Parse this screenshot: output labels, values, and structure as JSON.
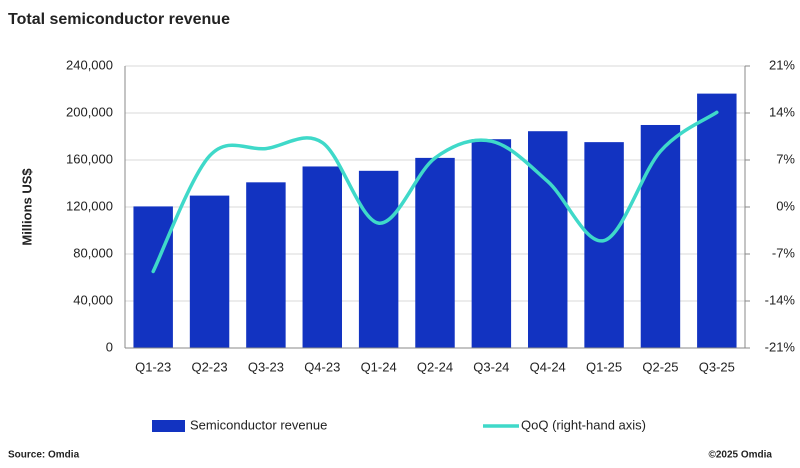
{
  "chart_data": {
    "type": "combo",
    "title": "Total semiconductor revenue",
    "y_label": "Millions US$",
    "categories": [
      "Q1-23",
      "Q2-23",
      "Q3-23",
      "Q4-23",
      "Q1-24",
      "Q2-24",
      "Q3-24",
      "Q4-24",
      "Q1-25",
      "Q2-25",
      "Q3-25"
    ],
    "series": [
      {
        "name": "Semiconductor revenue",
        "type": "bar",
        "color": "#1233c1",
        "values": [
          120500,
          129700,
          141000,
          154500,
          150800,
          161800,
          177700,
          184500,
          175200,
          189800,
          216500
        ]
      },
      {
        "name": "QoQ (right-hand axis)",
        "type": "line",
        "axis": "y2",
        "color": "#3fd9c9",
        "values": [
          -9.6,
          7.6,
          8.7,
          9.6,
          -2.4,
          7.3,
          9.8,
          3.8,
          -5.0,
          8.3,
          14.1
        ]
      }
    ],
    "ylim": [
      0,
      240000
    ],
    "yticks": [
      0,
      {
        "value": 40000,
        "label": "40,000"
      },
      {
        "value": 80000,
        "label": "80,000"
      },
      {
        "value": 120000,
        "label": "120,000"
      },
      {
        "value": 160000,
        "label": "160,000"
      },
      {
        "value": 200000,
        "label": "200,000"
      },
      {
        "value": 240000,
        "label": "240,000"
      }
    ],
    "y2lim": [
      -21,
      21
    ],
    "y2ticks": [
      {
        "value": -21,
        "label": "-21%"
      },
      {
        "value": -14,
        "label": "-14%"
      },
      {
        "value": -7,
        "label": "-7%"
      },
      {
        "value": 0,
        "label": "0%"
      },
      {
        "value": 7,
        "label": "7%"
      },
      {
        "value": 14,
        "label": "14%"
      },
      {
        "value": 21,
        "label": "21%"
      }
    ],
    "grid": true,
    "source": "Source: Omdia",
    "copyright": "©2025 Omdia"
  }
}
